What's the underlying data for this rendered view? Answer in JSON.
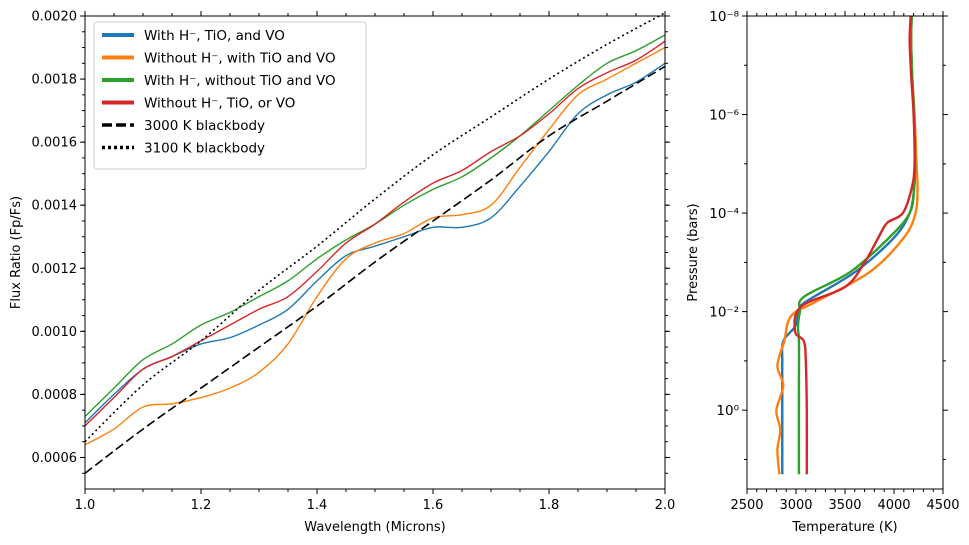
{
  "chart_data": [
    {
      "type": "line",
      "xlabel": "Wavelength (Microns)",
      "ylabel": "Flux Ratio (Fp/Fs)",
      "xlim": [
        1.0,
        2.0
      ],
      "ylim": [
        0.0005,
        0.002
      ],
      "xticks": [
        1.0,
        1.2,
        1.4,
        1.6,
        1.8,
        2.0
      ],
      "xtick_labels": [
        "1.0",
        "1.2",
        "1.4",
        "1.6",
        "1.8",
        "2.0"
      ],
      "yticks": [
        0.0006,
        0.0008,
        0.001,
        0.0012,
        0.0014,
        0.0016,
        0.0018,
        0.002
      ],
      "ytick_labels": [
        "0.0006",
        "0.0008",
        "0.0010",
        "0.0012",
        "0.0014",
        "0.0016",
        "0.0018",
        "0.0020"
      ],
      "grid": false,
      "legend_position": "top-left",
      "series": [
        {
          "name": "With H⁻, TiO, and VO",
          "color": "#1f77b4",
          "style": "solid",
          "x": [
            1.0,
            1.05,
            1.1,
            1.15,
            1.2,
            1.25,
            1.3,
            1.35,
            1.4,
            1.45,
            1.5,
            1.55,
            1.6,
            1.65,
            1.7,
            1.75,
            1.8,
            1.85,
            1.9,
            1.95,
            2.0
          ],
          "y": [
            0.00071,
            0.0008,
            0.00088,
            0.00092,
            0.00096,
            0.00098,
            0.00102,
            0.00107,
            0.00116,
            0.00124,
            0.00127,
            0.0013,
            0.00133,
            0.00133,
            0.00136,
            0.00146,
            0.00157,
            0.00169,
            0.00175,
            0.00179,
            0.00185
          ]
        },
        {
          "name": "Without H⁻, with TiO and VO",
          "color": "#ff7f0e",
          "style": "solid",
          "x": [
            1.0,
            1.05,
            1.1,
            1.15,
            1.2,
            1.25,
            1.3,
            1.35,
            1.4,
            1.45,
            1.5,
            1.55,
            1.6,
            1.65,
            1.7,
            1.75,
            1.8,
            1.85,
            1.9,
            1.95,
            2.0
          ],
          "y": [
            0.00064,
            0.00069,
            0.00076,
            0.00077,
            0.00079,
            0.00082,
            0.00087,
            0.00096,
            0.00111,
            0.00123,
            0.00128,
            0.00131,
            0.00136,
            0.00137,
            0.0014,
            0.00152,
            0.00164,
            0.00175,
            0.0018,
            0.00185,
            0.0019
          ]
        },
        {
          "name": "With H⁻, without TiO and VO",
          "color": "#2ca02c",
          "style": "solid",
          "x": [
            1.0,
            1.05,
            1.1,
            1.15,
            1.2,
            1.25,
            1.3,
            1.35,
            1.4,
            1.45,
            1.5,
            1.55,
            1.6,
            1.65,
            1.7,
            1.75,
            1.8,
            1.85,
            1.9,
            1.95,
            2.0
          ],
          "y": [
            0.00073,
            0.00082,
            0.00091,
            0.00096,
            0.00102,
            0.00106,
            0.00111,
            0.00116,
            0.00123,
            0.00129,
            0.00134,
            0.0014,
            0.00145,
            0.00149,
            0.00155,
            0.00162,
            0.0017,
            0.00178,
            0.00185,
            0.00189,
            0.00194
          ]
        },
        {
          "name": "Without H⁻, TiO, or VO",
          "color": "#d62728",
          "style": "solid",
          "x": [
            1.0,
            1.05,
            1.1,
            1.15,
            1.2,
            1.25,
            1.3,
            1.35,
            1.4,
            1.45,
            1.5,
            1.55,
            1.6,
            1.65,
            1.7,
            1.75,
            1.8,
            1.85,
            1.9,
            1.95,
            2.0
          ],
          "y": [
            0.0007,
            0.00079,
            0.00088,
            0.00092,
            0.00097,
            0.00102,
            0.00107,
            0.00111,
            0.00119,
            0.00128,
            0.00134,
            0.00141,
            0.00147,
            0.00151,
            0.00157,
            0.00162,
            0.00169,
            0.00177,
            0.00182,
            0.00186,
            0.00192
          ]
        },
        {
          "name": "3000 K blackbody",
          "color": "#000000",
          "style": "dashed",
          "x": [
            1.0,
            1.1,
            1.2,
            1.3,
            1.4,
            1.5,
            1.6,
            1.7,
            1.8,
            1.9,
            2.0
          ],
          "y": [
            0.00055,
            0.00069,
            0.00082,
            0.00095,
            0.00108,
            0.00122,
            0.00135,
            0.00148,
            0.00162,
            0.00173,
            0.00184
          ]
        },
        {
          "name": "3100 K blackbody",
          "color": "#000000",
          "style": "dotted",
          "x": [
            1.0,
            1.1,
            1.2,
            1.3,
            1.4,
            1.5,
            1.6,
            1.7,
            1.8,
            1.9,
            2.0
          ],
          "y": [
            0.00065,
            0.00083,
            0.00097,
            0.00113,
            0.00127,
            0.00142,
            0.00156,
            0.00168,
            0.0018,
            0.00191,
            0.00201
          ]
        }
      ]
    },
    {
      "type": "line",
      "xlabel": "Temperature (K)",
      "ylabel": "Pressure (bars)",
      "xlim": [
        2500,
        4500
      ],
      "ylim_log10": [
        1.6,
        -8
      ],
      "yscale": "log",
      "y_inverted": true,
      "xticks": [
        2500,
        3000,
        3500,
        4000,
        4500
      ],
      "xtick_labels": [
        "2500",
        "3000",
        "3500",
        "4000",
        "4500"
      ],
      "yticks_log10": [
        0,
        -2,
        -4,
        -6,
        -8
      ],
      "ytick_labels": [
        "10⁰",
        "10⁻²",
        "10⁻⁴",
        "10⁻⁶",
        "10⁻⁸"
      ],
      "grid": false,
      "series": [
        {
          "color": "#1f77b4",
          "temperature": [
            4180,
            4175,
            4185,
            4205,
            4215,
            4205,
            4160,
            4000,
            3600,
            3100,
            3030,
            2990,
            2870,
            2860,
            2860,
            2860,
            2860
          ],
          "log10_pressure": [
            -8,
            -7.5,
            -6.8,
            -6,
            -5,
            -4.5,
            -4,
            -3.5,
            -2.8,
            -2.2,
            -2,
            -1.7,
            -1.4,
            -1,
            -0.5,
            0.5,
            1.3
          ]
        },
        {
          "color": "#ff7f0e",
          "temperature": [
            4180,
            4175,
            4185,
            4210,
            4230,
            4240,
            4220,
            4100,
            3750,
            3200,
            3000,
            2920,
            2880,
            2810,
            2870,
            2800,
            2840,
            2810,
            2830
          ],
          "log10_pressure": [
            -8,
            -7.5,
            -6.8,
            -6,
            -5,
            -4.5,
            -4,
            -3.5,
            -2.8,
            -2.2,
            -2,
            -1.8,
            -1.4,
            -0.9,
            -0.5,
            0,
            0.4,
            0.8,
            1.3
          ]
        },
        {
          "color": "#2ca02c",
          "temperature": [
            4180,
            4175,
            4185,
            4205,
            4215,
            4205,
            4160,
            3950,
            3550,
            3080,
            3040,
            3020,
            3030,
            3030,
            3030,
            3030
          ],
          "log10_pressure": [
            -8,
            -7.5,
            -6.8,
            -6,
            -5,
            -4.5,
            -4,
            -3.5,
            -2.8,
            -2.3,
            -2,
            -1.7,
            -1.4,
            -0.5,
            0.5,
            1.3
          ]
        },
        {
          "color": "#d62728",
          "temperature": [
            4170,
            4160,
            4175,
            4200,
            4210,
            4180,
            4090,
            3930,
            3840,
            3700,
            3500,
            3050,
            2990,
            3080,
            3100,
            3110,
            3110
          ],
          "log10_pressure": [
            -8,
            -7.5,
            -6.8,
            -6,
            -5,
            -4.5,
            -4,
            -3.8,
            -3.5,
            -3,
            -2.5,
            -2.1,
            -1.6,
            -1.4,
            -1,
            0,
            1.3
          ]
        }
      ]
    }
  ]
}
